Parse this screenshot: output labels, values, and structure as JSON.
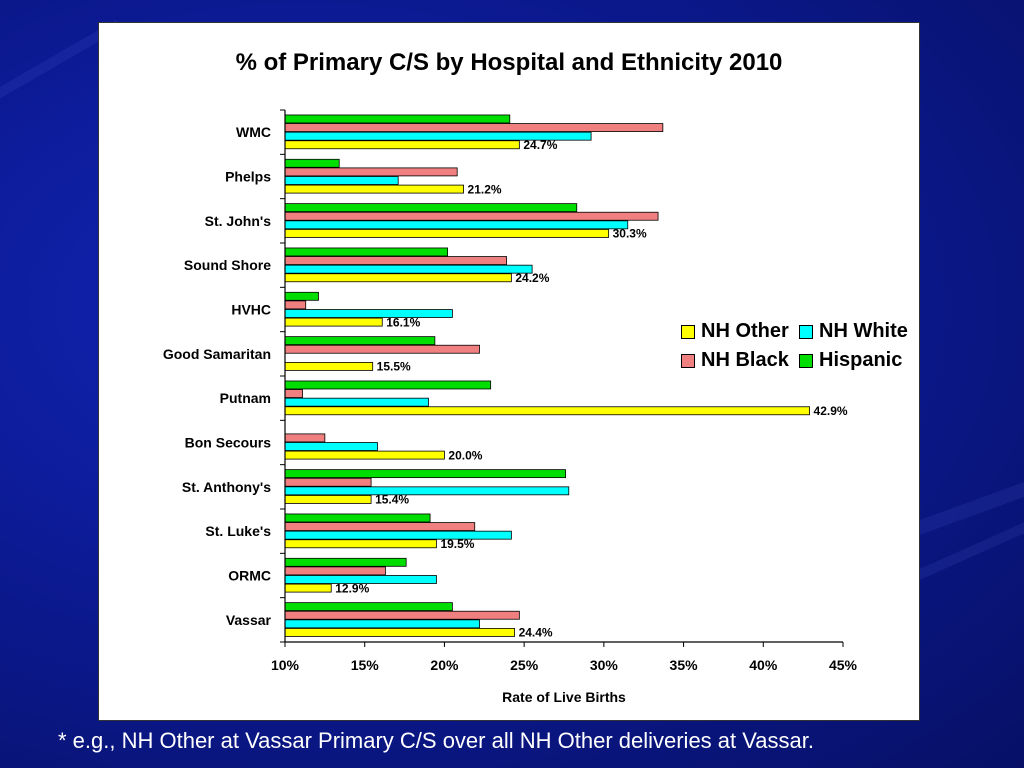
{
  "footnote": "* e.g., NH Other at Vassar Primary C/S over all NH Other deliveries at Vassar.",
  "chart_data": {
    "type": "bar",
    "orientation": "horizontal",
    "title": "% of Primary C/S by Hospital and Ethnicity 2010",
    "xlabel": "Rate of Live Births",
    "ylabel": "",
    "xlim": [
      0.1,
      0.45
    ],
    "x_ticks": [
      0.1,
      0.15,
      0.2,
      0.25,
      0.3,
      0.35,
      0.4,
      0.45
    ],
    "x_tick_labels": [
      "10%",
      "15%",
      "20%",
      "25%",
      "30%",
      "35%",
      "40%",
      "45%"
    ],
    "grid": false,
    "legend_position": "right",
    "categories": [
      "WMC",
      "Phelps",
      "St. John's",
      "Sound Shore",
      "HVHC",
      "Good Samaritan",
      "Putnam",
      "Bon Secours",
      "St. Anthony's",
      "St. Luke's",
      "ORMC",
      "Vassar"
    ],
    "series": [
      {
        "name": "Hispanic",
        "color": "#00dd00",
        "values": [
          0.241,
          0.134,
          0.283,
          0.202,
          0.121,
          0.194,
          0.229,
          null,
          0.276,
          0.191,
          0.176,
          0.205
        ]
      },
      {
        "name": "NH Black",
        "color": "#f08080",
        "values": [
          0.337,
          0.208,
          0.334,
          0.239,
          0.113,
          0.222,
          0.111,
          0.125,
          0.154,
          0.219,
          0.163,
          0.247
        ]
      },
      {
        "name": "NH White",
        "color": "#00ffff",
        "values": [
          0.292,
          0.171,
          0.315,
          0.255,
          0.205,
          null,
          0.19,
          0.158,
          0.278,
          0.242,
          0.195,
          0.222
        ]
      },
      {
        "name": "NH Other",
        "color": "#ffff00",
        "values": [
          0.247,
          0.212,
          0.303,
          0.242,
          0.161,
          0.155,
          0.429,
          0.2,
          0.154,
          0.195,
          0.129,
          0.244
        ]
      }
    ],
    "data_labels": [
      "24.7%",
      "21.2%",
      "30.3%",
      "24.2%",
      "16.1%",
      "15.5%",
      "42.9%",
      "20.0%",
      "15.4%",
      "19.5%",
      "12.9%",
      "24.4%"
    ],
    "legend": [
      {
        "name": "NH Other",
        "color": "#ffff00"
      },
      {
        "name": "NH White",
        "color": "#00ffff"
      },
      {
        "name": "NH Black",
        "color": "#f08080"
      },
      {
        "name": "Hispanic",
        "color": "#00dd00"
      }
    ]
  }
}
